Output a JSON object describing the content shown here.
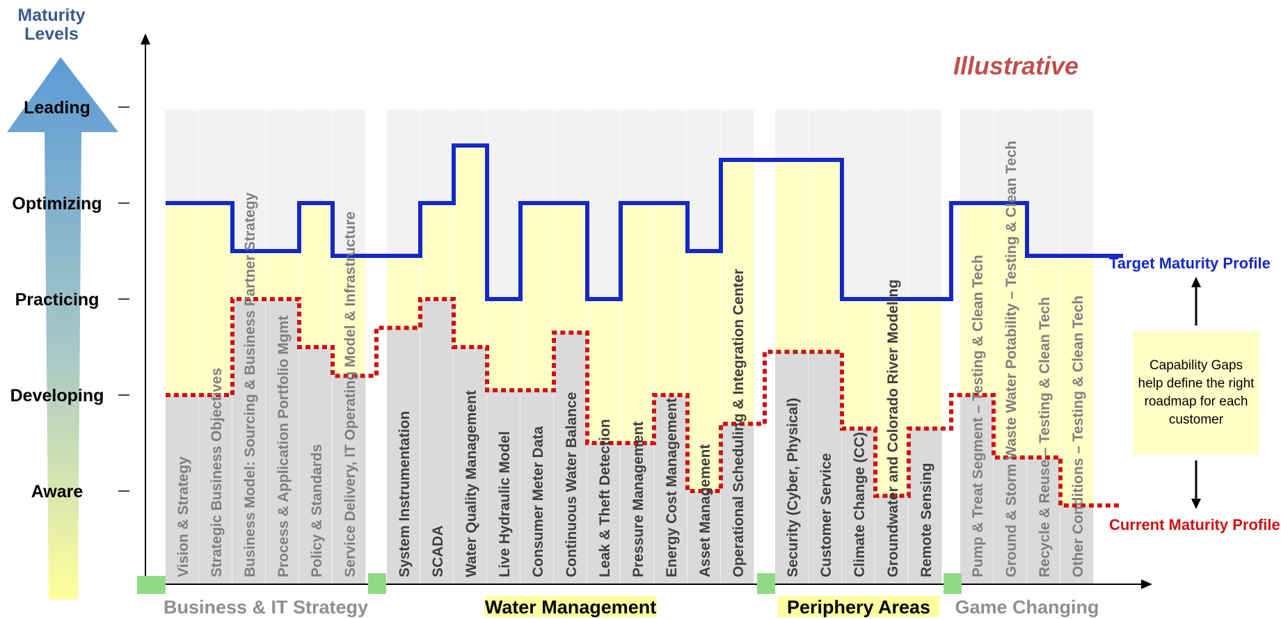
{
  "chart_data": {
    "type": "step-line",
    "illustrative_label": "Illustrative",
    "y_axis": {
      "title": [
        "Maturity",
        "Levels"
      ],
      "levels": [
        "Aware",
        "Developing",
        "Practicing",
        "Optimizing",
        "Leading"
      ],
      "ylim": [
        0.5,
        5.5
      ]
    },
    "groups": [
      {
        "name": "Business & IT Strategy",
        "color": "#8f8f8f",
        "highlight": false,
        "span": [
          0,
          6
        ]
      },
      {
        "name": "Water Management",
        "color": "#000000",
        "highlight": true,
        "span": [
          6,
          17
        ]
      },
      {
        "name": "Periphery Areas",
        "color": "#000000",
        "highlight": true,
        "span": [
          17,
          22
        ]
      },
      {
        "name": "Game Changing",
        "color": "#8f8f8f",
        "highlight": false,
        "span": [
          22,
          26
        ]
      }
    ],
    "categories": [
      "Vision & Strategy",
      "Strategic Business Objectives",
      "Business Model: Sourcing & Business Partner Strategy",
      "Process & Application Portfolio Mgmt",
      "Policy & Standards",
      "Service Delivery, IT Operating Model & Infrastructure",
      "System Instrumentation",
      "SCADA",
      "Water Quality Management",
      "Live Hydraulic Model",
      "Consumer Meter Data",
      "Continuous Water Balance",
      "Leak & Theft Detection",
      "Pressure Management",
      "Energy Cost Management",
      "Asset Management",
      "Operational Scheduling & Integration Center",
      "Security (Cyber, Physical)",
      "Customer Service",
      "Climate Change (CC)",
      "Groundwater and Colorado River Modeling",
      "Remote Sensing",
      "Pump & Treat Segment – Testing & Clean Tech",
      "Ground & Storm Waste Water Potability – Testing & Clean Tech",
      "Recycle & Reuse – Testing & Clean Tech",
      "Other Conditions – Testing & Clean Tech"
    ],
    "series": [
      {
        "name": "Target Maturity Profile",
        "color": "#1428c8",
        "style": "solid",
        "values": [
          4,
          4,
          3.5,
          3.5,
          4,
          3.45,
          3.45,
          4,
          4.6,
          3,
          4,
          4,
          3,
          4,
          4,
          3.5,
          4.45,
          4.45,
          4.45,
          3,
          3,
          3,
          4,
          4,
          3.45,
          3.45
        ]
      },
      {
        "name": "Current Maturity Profile",
        "color": "#d01010",
        "style": "dotted",
        "values": [
          2,
          2,
          3,
          3,
          2.5,
          2.2,
          2.7,
          3,
          2.5,
          2.05,
          2.05,
          2.65,
          1.5,
          1.5,
          2,
          1,
          1.7,
          2.45,
          2.45,
          1.65,
          0.95,
          1.65,
          2,
          1.35,
          1.35,
          0.85
        ]
      }
    ],
    "annotation": "Capability Gaps help define the right roadmap for each customer",
    "colors": {
      "column_above": "#ffffc8",
      "column_below": "#dadada",
      "column_top": "#f2f2f2",
      "group_marker": "#92d986",
      "gradient_top": "#5b9bd5",
      "gradient_bottom": "#ffff9a"
    }
  }
}
